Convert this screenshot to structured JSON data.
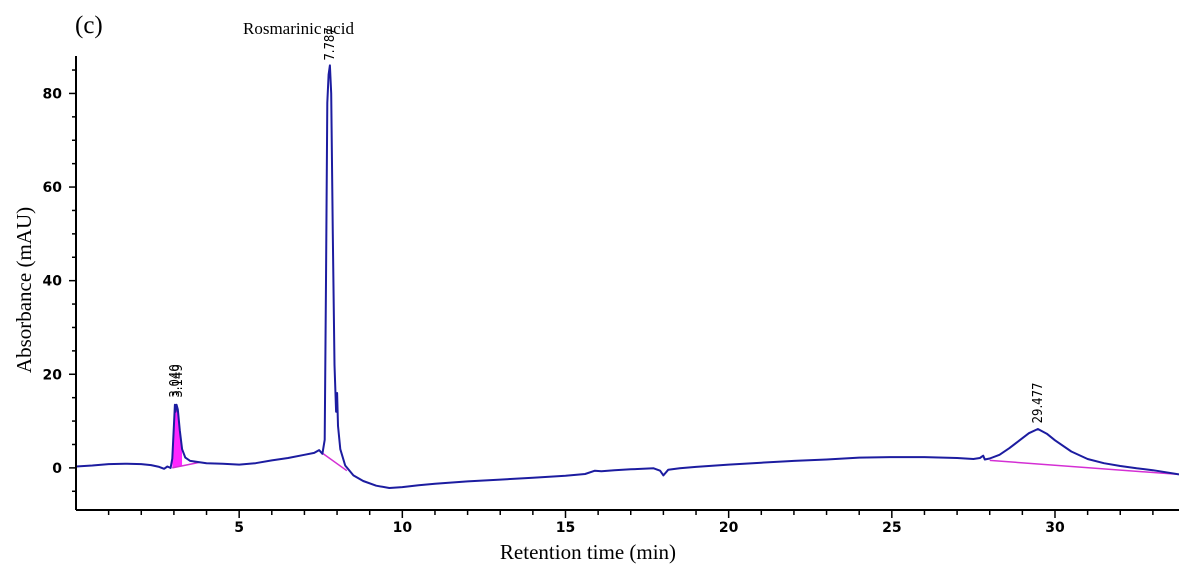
{
  "panel_label": "(c)",
  "chart_data": {
    "type": "line",
    "title": "",
    "annotation": "Rosmarinic acid",
    "xlabel": "Retention time (min)",
    "ylabel": "Absorbance (mAU)",
    "xlim": [
      0,
      33.8
    ],
    "ylim": [
      -9,
      88
    ],
    "xticks": [
      5,
      10,
      15,
      20,
      25,
      30
    ],
    "yticks": [
      0,
      20,
      40,
      60,
      80
    ],
    "xtick_labels": [
      "5",
      "10",
      "15",
      "20",
      "25",
      "30"
    ],
    "ytick_labels": [
      "0",
      "20",
      "40",
      "60",
      "80"
    ],
    "grid": false,
    "colors": {
      "trace": "#1c1ca0",
      "baseline": "#d42fd4",
      "fill": "#ff00ff",
      "axis": "#000000"
    },
    "series": [
      {
        "values": [
          [
            0.0,
            0.3
          ],
          [
            0.5,
            0.5
          ],
          [
            1.0,
            0.8
          ],
          [
            1.5,
            0.9
          ],
          [
            2.0,
            0.8
          ],
          [
            2.3,
            0.6
          ],
          [
            2.55,
            0.2
          ],
          [
            2.7,
            -0.2
          ],
          [
            2.8,
            0.3
          ],
          [
            2.9,
            0.0
          ],
          [
            2.95,
            2.0
          ],
          [
            3.0,
            9.0
          ],
          [
            3.03,
            13.5
          ],
          [
            3.05,
            12.0
          ],
          [
            3.08,
            13.5
          ],
          [
            3.12,
            12.5
          ],
          [
            3.18,
            8.0
          ],
          [
            3.25,
            4.0
          ],
          [
            3.35,
            2.2
          ],
          [
            3.5,
            1.5
          ],
          [
            4.0,
            1.0
          ],
          [
            4.5,
            0.9
          ],
          [
            5.0,
            0.7
          ],
          [
            5.5,
            1.0
          ],
          [
            6.0,
            1.6
          ],
          [
            6.5,
            2.1
          ],
          [
            7.0,
            2.8
          ],
          [
            7.3,
            3.2
          ],
          [
            7.45,
            3.8
          ],
          [
            7.55,
            3.0
          ],
          [
            7.62,
            6.0
          ],
          [
            7.66,
            40.0
          ],
          [
            7.7,
            78.0
          ],
          [
            7.74,
            84.0
          ],
          [
            7.78,
            86.0
          ],
          [
            7.82,
            80.0
          ],
          [
            7.87,
            50.0
          ],
          [
            7.92,
            22.0
          ],
          [
            7.97,
            12.0
          ],
          [
            8.0,
            16.0
          ],
          [
            8.03,
            9.0
          ],
          [
            8.1,
            4.0
          ],
          [
            8.25,
            0.5
          ],
          [
            8.5,
            -1.6
          ],
          [
            8.8,
            -2.8
          ],
          [
            9.2,
            -3.8
          ],
          [
            9.6,
            -4.3
          ],
          [
            10.0,
            -4.1
          ],
          [
            10.5,
            -3.7
          ],
          [
            11.0,
            -3.4
          ],
          [
            12.0,
            -2.9
          ],
          [
            13.0,
            -2.5
          ],
          [
            14.0,
            -2.1
          ],
          [
            15.0,
            -1.7
          ],
          [
            15.6,
            -1.3
          ],
          [
            15.9,
            -0.6
          ],
          [
            16.1,
            -0.7
          ],
          [
            16.5,
            -0.5
          ],
          [
            17.0,
            -0.3
          ],
          [
            17.7,
            -0.1
          ],
          [
            17.9,
            -0.6
          ],
          [
            18.0,
            -1.6
          ],
          [
            18.15,
            -0.4
          ],
          [
            18.5,
            -0.1
          ],
          [
            19.0,
            0.2
          ],
          [
            20.0,
            0.7
          ],
          [
            21.0,
            1.1
          ],
          [
            21.8,
            1.4
          ],
          [
            22.0,
            1.5
          ],
          [
            23.0,
            1.8
          ],
          [
            23.8,
            2.1
          ],
          [
            24.0,
            2.2
          ],
          [
            25.0,
            2.3
          ],
          [
            26.0,
            2.3
          ],
          [
            27.0,
            2.1
          ],
          [
            27.5,
            1.9
          ],
          [
            27.7,
            2.1
          ],
          [
            27.8,
            2.6
          ],
          [
            27.85,
            1.8
          ],
          [
            28.0,
            2.0
          ],
          [
            28.3,
            2.8
          ],
          [
            28.6,
            4.2
          ],
          [
            28.9,
            5.8
          ],
          [
            29.2,
            7.4
          ],
          [
            29.477,
            8.3
          ],
          [
            29.75,
            7.3
          ],
          [
            30.0,
            5.9
          ],
          [
            30.5,
            3.5
          ],
          [
            31.0,
            1.9
          ],
          [
            31.5,
            1.0
          ],
          [
            32.0,
            0.4
          ],
          [
            32.5,
            -0.1
          ],
          [
            33.0,
            -0.5
          ],
          [
            33.8,
            -1.4
          ]
        ]
      }
    ],
    "baselines": [
      [
        [
          2.95,
          0.0
        ],
        [
          3.8,
          1.2
        ]
      ],
      [
        [
          7.5,
          3.4
        ],
        [
          8.3,
          -0.6
        ]
      ],
      [
        [
          28.0,
          1.6
        ],
        [
          33.8,
          -1.4
        ]
      ]
    ],
    "filled_peaks": [
      {
        "baseline": [
          [
            2.95,
            0.0
          ],
          [
            3.25,
            0.4
          ]
        ],
        "points": [
          [
            2.95,
            0.0
          ],
          [
            3.0,
            9.0
          ],
          [
            3.03,
            13.5
          ],
          [
            3.05,
            12.0
          ],
          [
            3.08,
            13.5
          ],
          [
            3.12,
            12.5
          ],
          [
            3.18,
            8.0
          ],
          [
            3.25,
            4.0
          ]
        ]
      }
    ],
    "peak_labels": [
      {
        "x": 3.04,
        "y": 15.0,
        "text": "3.040"
      },
      {
        "x": 3.12,
        "y": 15.0,
        "text": "3.149"
      },
      {
        "x": 7.787,
        "y": 87.0,
        "text": "7.787"
      },
      {
        "x": 29.477,
        "y": 9.5,
        "text": "29.477"
      }
    ]
  }
}
